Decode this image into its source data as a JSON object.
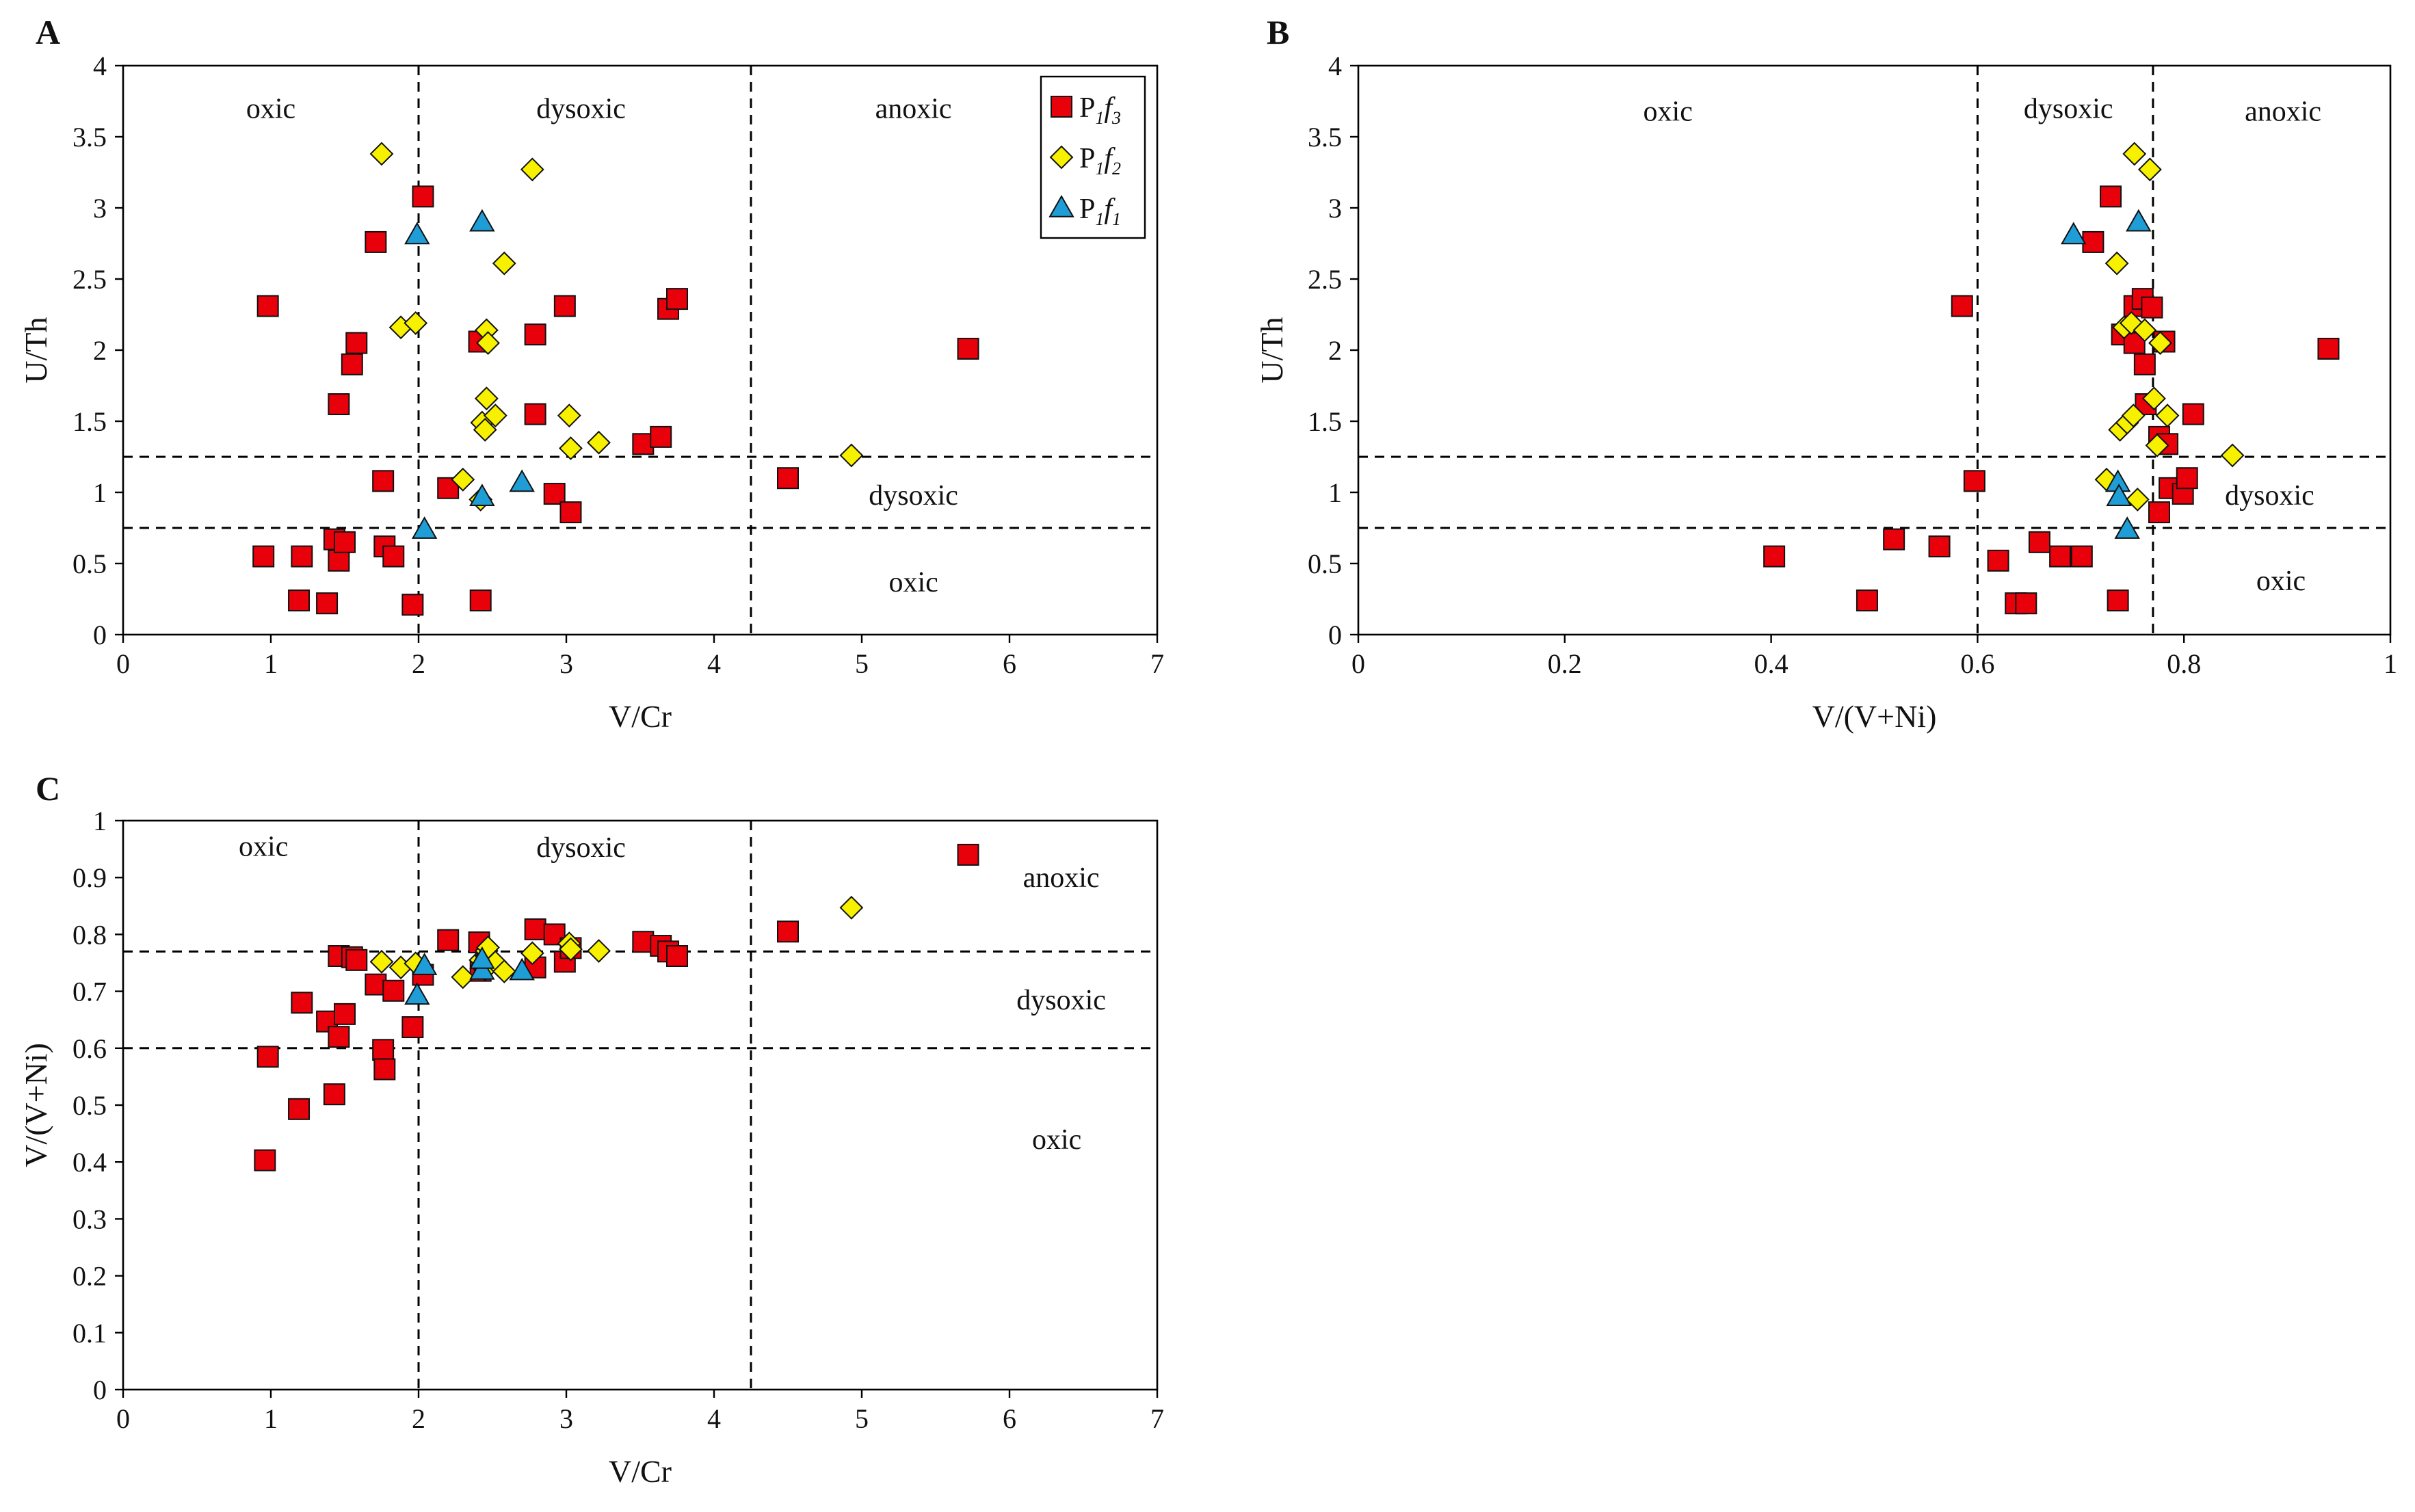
{
  "colors": {
    "P1f3": "#e8000b",
    "P1f2": "#f7f100",
    "P1f1": "#1f9dd6",
    "marker_edge": "#111111"
  },
  "legend": {
    "entries": [
      {
        "series": "P1f3",
        "main": "P",
        "sub1": "1",
        "italic": "f",
        "sub2": "3",
        "marker": "square"
      },
      {
        "series": "P1f2",
        "main": "P",
        "sub1": "1",
        "italic": "f",
        "sub2": "2",
        "marker": "diamond"
      },
      {
        "series": "P1f1",
        "main": "P",
        "sub1": "1",
        "italic": "f",
        "sub2": "1",
        "marker": "triangle"
      }
    ]
  },
  "chart_data": [
    {
      "panel": "A",
      "type": "scatter",
      "xlabel": "V/Cr",
      "ylabel": "U/Th",
      "xlim": [
        0,
        7
      ],
      "ylim": [
        0,
        4
      ],
      "xticks": [
        0,
        1,
        2,
        3,
        4,
        5,
        6,
        7
      ],
      "xtick_labels": [
        "0",
        "1",
        "2",
        "3",
        "4",
        "5",
        "6",
        "7"
      ],
      "yticks": [
        0,
        0.5,
        1,
        1.5,
        2,
        2.5,
        3,
        3.5,
        4
      ],
      "ytick_labels": [
        "0",
        "0.5",
        "1",
        "1.5",
        "2",
        "2.5",
        "3",
        "3.5",
        "4"
      ],
      "vlines": [
        2,
        4.25
      ],
      "hlines": [
        0.75,
        1.25
      ],
      "zones": [
        {
          "label": "oxic",
          "x": 1.0,
          "y": 3.7
        },
        {
          "label": "dysoxic",
          "x": 3.1,
          "y": 3.7
        },
        {
          "label": "anoxic",
          "x": 5.35,
          "y": 3.7
        },
        {
          "label": "dysoxic",
          "x": 5.35,
          "y": 0.98
        },
        {
          "label": "oxic",
          "x": 5.35,
          "y": 0.37
        }
      ],
      "legend": true,
      "series": [
        {
          "name": "P1f3",
          "marker": "square",
          "points": [
            [
              0.95,
              0.55
            ],
            [
              0.98,
              2.31
            ],
            [
              1.19,
              0.24
            ],
            [
              1.21,
              0.55
            ],
            [
              1.38,
              0.22
            ],
            [
              1.43,
              0.67
            ],
            [
              1.46,
              1.62
            ],
            [
              1.46,
              0.52
            ],
            [
              1.5,
              0.65
            ],
            [
              1.55,
              1.9
            ],
            [
              1.58,
              2.05
            ],
            [
              1.71,
              2.76
            ],
            [
              1.76,
              1.08
            ],
            [
              1.77,
              0.62
            ],
            [
              1.83,
              0.55
            ],
            [
              1.96,
              0.21
            ],
            [
              2.03,
              3.08
            ],
            [
              2.2,
              1.03
            ],
            [
              2.41,
              2.06
            ],
            [
              2.42,
              0.24
            ],
            [
              2.79,
              2.11
            ],
            [
              2.79,
              1.55
            ],
            [
              2.92,
              0.99
            ],
            [
              2.99,
              2.31
            ],
            [
              3.03,
              0.86
            ],
            [
              3.52,
              1.34
            ],
            [
              3.64,
              1.39
            ],
            [
              3.69,
              2.29
            ],
            [
              3.75,
              2.36
            ],
            [
              4.5,
              1.1
            ],
            [
              5.72,
              2.01
            ]
          ]
        },
        {
          "name": "P1f2",
          "marker": "diamond",
          "points": [
            [
              1.75,
              3.38
            ],
            [
              1.88,
              2.16
            ],
            [
              1.98,
              2.19
            ],
            [
              2.3,
              1.09
            ],
            [
              2.42,
              0.95
            ],
            [
              2.43,
              1.49
            ],
            [
              2.45,
              1.44
            ],
            [
              2.46,
              2.14
            ],
            [
              2.46,
              1.66
            ],
            [
              2.47,
              2.05
            ],
            [
              2.52,
              1.54
            ],
            [
              2.58,
              2.61
            ],
            [
              2.77,
              3.27
            ],
            [
              3.02,
              1.54
            ],
            [
              3.03,
              1.31
            ],
            [
              3.22,
              1.35
            ],
            [
              4.93,
              1.26
            ]
          ]
        },
        {
          "name": "P1f1",
          "marker": "triangle",
          "points": [
            [
              1.99,
              2.81
            ],
            [
              2.04,
              0.74
            ],
            [
              2.43,
              0.97
            ],
            [
              2.43,
              2.9
            ],
            [
              2.7,
              1.07
            ]
          ]
        }
      ]
    },
    {
      "panel": "B",
      "type": "scatter",
      "xlabel": "V/(V+Ni)",
      "ylabel": "U/Th",
      "xlim": [
        0,
        1
      ],
      "ylim": [
        0,
        4
      ],
      "xticks": [
        0,
        0.2,
        0.4,
        0.6,
        0.8,
        1
      ],
      "xtick_labels": [
        "0",
        "0.2",
        "0.4",
        "0.6",
        "0.8",
        "1"
      ],
      "yticks": [
        0,
        0.5,
        1,
        1.5,
        2,
        2.5,
        3,
        3.5,
        4
      ],
      "ytick_labels": [
        "0",
        "0.5",
        "1",
        "1.5",
        "2",
        "2.5",
        "3",
        "3.5",
        "4"
      ],
      "vlines": [
        0.6,
        0.77
      ],
      "hlines": [
        0.75,
        1.25
      ],
      "zones": [
        {
          "label": "oxic",
          "x": 0.3,
          "y": 3.68
        },
        {
          "label": "dysoxic",
          "x": 0.688,
          "y": 3.7
        },
        {
          "label": "anoxic",
          "x": 0.896,
          "y": 3.68
        },
        {
          "label": "dysoxic",
          "x": 0.883,
          "y": 0.98
        },
        {
          "label": "oxic",
          "x": 0.894,
          "y": 0.38
        }
      ],
      "legend": false,
      "series": [
        {
          "name": "P1f3",
          "marker": "square",
          "points": [
            [
              0.403,
              0.55
            ],
            [
              0.493,
              0.24
            ],
            [
              0.519,
              0.67
            ],
            [
              0.563,
              0.62
            ],
            [
              0.585,
              2.31
            ],
            [
              0.597,
              1.08
            ],
            [
              0.62,
              0.52
            ],
            [
              0.637,
              0.22
            ],
            [
              0.647,
              0.22
            ],
            [
              0.66,
              0.65
            ],
            [
              0.68,
              0.55
            ],
            [
              0.701,
              0.55
            ],
            [
              0.712,
              2.76
            ],
            [
              0.729,
              3.08
            ],
            [
              0.736,
              0.24
            ],
            [
              0.74,
              2.11
            ],
            [
              0.752,
              2.31
            ],
            [
              0.752,
              2.05
            ],
            [
              0.76,
              2.36
            ],
            [
              0.762,
              1.9
            ],
            [
              0.763,
              1.62
            ],
            [
              0.769,
              2.3
            ],
            [
              0.776,
              0.86
            ],
            [
              0.776,
              1.39
            ],
            [
              0.781,
              2.06
            ],
            [
              0.784,
              1.34
            ],
            [
              0.786,
              1.03
            ],
            [
              0.799,
              0.99
            ],
            [
              0.803,
              1.1
            ],
            [
              0.809,
              1.55
            ],
            [
              0.94,
              2.01
            ]
          ]
        },
        {
          "name": "P1f2",
          "marker": "diamond",
          "points": [
            [
              0.725,
              1.09
            ],
            [
              0.735,
              2.61
            ],
            [
              0.738,
              1.44
            ],
            [
              0.742,
              2.16
            ],
            [
              0.745,
              1.49
            ],
            [
              0.749,
              2.19
            ],
            [
              0.751,
              1.54
            ],
            [
              0.752,
              3.38
            ],
            [
              0.755,
              0.95
            ],
            [
              0.762,
              2.14
            ],
            [
              0.767,
              3.27
            ],
            [
              0.771,
              1.66
            ],
            [
              0.774,
              1.33
            ],
            [
              0.777,
              2.05
            ],
            [
              0.784,
              1.54
            ],
            [
              0.847,
              1.26
            ]
          ]
        },
        {
          "name": "P1f1",
          "marker": "triangle",
          "points": [
            [
              0.693,
              2.81
            ],
            [
              0.736,
              1.07
            ],
            [
              0.737,
              0.97
            ],
            [
              0.745,
              0.74
            ],
            [
              0.756,
              2.9
            ]
          ]
        }
      ]
    },
    {
      "panel": "C",
      "type": "scatter",
      "xlabel": "V/Cr",
      "ylabel": "V/(V+Ni)",
      "xlim": [
        0,
        7
      ],
      "ylim": [
        0,
        1
      ],
      "xticks": [
        0,
        1,
        2,
        3,
        4,
        5,
        6,
        7
      ],
      "xtick_labels": [
        "0",
        "1",
        "2",
        "3",
        "4",
        "5",
        "6",
        "7"
      ],
      "yticks": [
        0,
        0.1,
        0.2,
        0.3,
        0.4,
        0.5,
        0.6,
        0.7,
        0.8,
        0.9,
        1
      ],
      "ytick_labels": [
        "0",
        "0.1",
        "0.2",
        "0.3",
        "0.4",
        "0.5",
        "0.6",
        "0.7",
        "0.8",
        "0.9",
        "1"
      ],
      "vlines": [
        2,
        4.25
      ],
      "hlines": [
        0.6,
        0.77
      ],
      "zones": [
        {
          "label": "oxic",
          "x": 0.95,
          "y": 0.955
        },
        {
          "label": "dysoxic",
          "x": 3.1,
          "y": 0.953
        },
        {
          "label": "anoxic",
          "x": 6.35,
          "y": 0.9
        },
        {
          "label": "dysoxic",
          "x": 6.35,
          "y": 0.685
        },
        {
          "label": "oxic",
          "x": 6.32,
          "y": 0.44
        }
      ],
      "legend": false,
      "series": [
        {
          "name": "P1f3",
          "marker": "square",
          "points": [
            [
              0.96,
              0.403
            ],
            [
              0.98,
              0.585
            ],
            [
              1.19,
              0.493
            ],
            [
              1.21,
              0.68
            ],
            [
              1.38,
              0.647
            ],
            [
              1.43,
              0.519
            ],
            [
              1.46,
              0.762
            ],
            [
              1.46,
              0.62
            ],
            [
              1.5,
              0.66
            ],
            [
              1.55,
              0.76
            ],
            [
              1.58,
              0.755
            ],
            [
              1.71,
              0.712
            ],
            [
              1.76,
              0.597
            ],
            [
              1.77,
              0.563
            ],
            [
              1.83,
              0.701
            ],
            [
              1.96,
              0.637
            ],
            [
              2.03,
              0.729
            ],
            [
              2.2,
              0.79
            ],
            [
              2.41,
              0.786
            ],
            [
              2.42,
              0.736
            ],
            [
              2.79,
              0.809
            ],
            [
              2.79,
              0.742
            ],
            [
              2.92,
              0.8
            ],
            [
              2.99,
              0.752
            ],
            [
              3.03,
              0.776
            ],
            [
              3.52,
              0.787
            ],
            [
              3.64,
              0.78
            ],
            [
              3.69,
              0.77
            ],
            [
              3.75,
              0.762
            ],
            [
              4.5,
              0.805
            ],
            [
              5.72,
              0.94
            ]
          ]
        },
        {
          "name": "P1f2",
          "marker": "diamond",
          "points": [
            [
              1.75,
              0.752
            ],
            [
              1.88,
              0.742
            ],
            [
              1.98,
              0.749
            ],
            [
              2.3,
              0.725
            ],
            [
              2.42,
              0.755
            ],
            [
              2.43,
              0.745
            ],
            [
              2.45,
              0.738
            ],
            [
              2.46,
              0.762
            ],
            [
              2.46,
              0.771
            ],
            [
              2.47,
              0.777
            ],
            [
              2.52,
              0.751
            ],
            [
              2.58,
              0.735
            ],
            [
              2.77,
              0.767
            ],
            [
              3.02,
              0.784
            ],
            [
              3.03,
              0.774
            ],
            [
              3.22,
              0.771
            ],
            [
              4.93,
              0.847
            ]
          ]
        },
        {
          "name": "P1f1",
          "marker": "triangle",
          "points": [
            [
              1.99,
              0.693
            ],
            [
              2.04,
              0.745
            ],
            [
              2.43,
              0.737
            ],
            [
              2.43,
              0.756
            ],
            [
              2.7,
              0.736
            ]
          ]
        }
      ]
    }
  ]
}
